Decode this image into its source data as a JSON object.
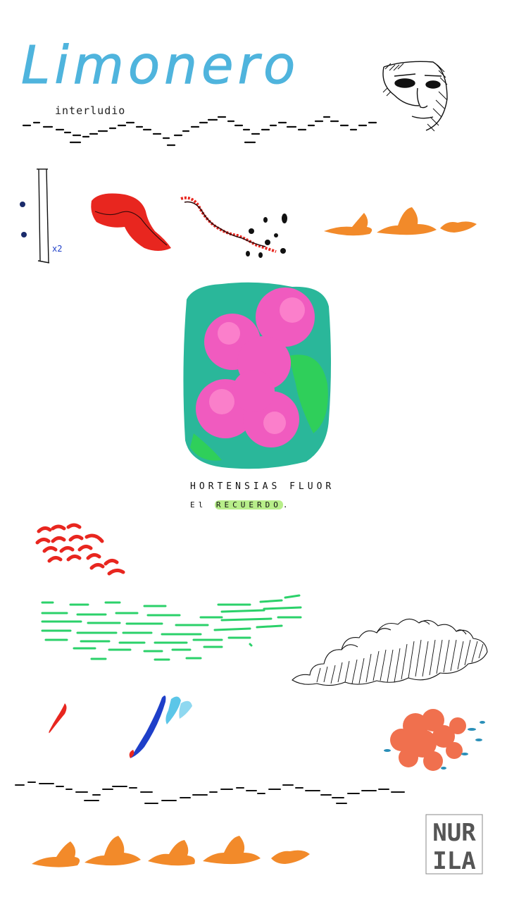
{
  "title": "Limonero",
  "subtitle": "interludio",
  "caption": {
    "line1": "HORTENSIAS FLUOR",
    "line2_prefix": "El ",
    "line2_highlight": "RECUERDO",
    "line2_suffix": "."
  },
  "repeat_mark": "x2",
  "signature": {
    "line1": "NUR",
    "line2": "ILA"
  },
  "colors": {
    "title_blue": "#4fb4dd",
    "red": "#e8261f",
    "orange": "#f28a2a",
    "pink": "#f05bbf",
    "teal": "#2ab79a",
    "green_lines": "#2bd16a",
    "dark_blue": "#1e3fc9",
    "light_blue": "#5cc6e8",
    "salmon": "#f0704e"
  },
  "icons": [
    "face-sketch-icon",
    "repeat-bar-icon",
    "cloud-sketch-icon",
    "signature-stamp-icon"
  ]
}
